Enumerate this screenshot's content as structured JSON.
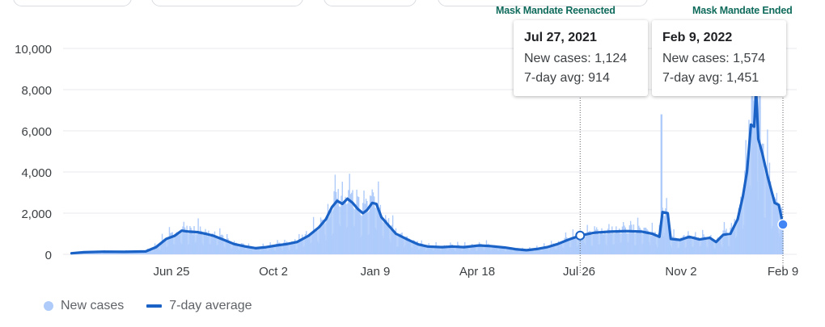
{
  "chart_data": {
    "type": "bar",
    "y_ticks": [
      "10,000",
      "8,000",
      "6,000",
      "4,000",
      "2,000",
      "0"
    ],
    "y_tick_values": [
      10000,
      8000,
      6000,
      4000,
      2000,
      0
    ],
    "ylim": [
      0,
      10000
    ],
    "x_ticks": [
      {
        "label": "Jun 25",
        "date": "2020-06-25"
      },
      {
        "label": "Oct 2",
        "date": "2020-10-02"
      },
      {
        "label": "Jan 9",
        "date": "2021-01-09"
      },
      {
        "label": "Apr 18",
        "date": "2021-04-18"
      },
      {
        "label": "Jul 26",
        "date": "2021-07-26"
      },
      {
        "label": "Nov 2",
        "date": "2021-11-02"
      },
      {
        "label": "Feb 9",
        "date": "2022-02-09"
      }
    ],
    "xlim": [
      "2020-03-20",
      "2022-02-10"
    ],
    "series": [
      {
        "name": "New cases",
        "kind": "bars",
        "color": "#aecbfa"
      },
      {
        "name": "7-day average",
        "kind": "line",
        "color": "#1a62c6"
      }
    ],
    "avg_points": [
      [
        "2020-03-20",
        50
      ],
      [
        "2020-04-01",
        100
      ],
      [
        "2020-04-20",
        130
      ],
      [
        "2020-05-10",
        120
      ],
      [
        "2020-05-31",
        140
      ],
      [
        "2020-06-10",
        350
      ],
      [
        "2020-06-20",
        750
      ],
      [
        "2020-06-28",
        900
      ],
      [
        "2020-07-05",
        1150
      ],
      [
        "2020-07-12",
        1100
      ],
      [
        "2020-07-20",
        1080
      ],
      [
        "2020-07-28",
        1000
      ],
      [
        "2020-08-05",
        900
      ],
      [
        "2020-08-15",
        700
      ],
      [
        "2020-08-25",
        500
      ],
      [
        "2020-09-05",
        380
      ],
      [
        "2020-09-15",
        300
      ],
      [
        "2020-09-25",
        350
      ],
      [
        "2020-10-05",
        430
      ],
      [
        "2020-10-15",
        500
      ],
      [
        "2020-10-25",
        600
      ],
      [
        "2020-11-05",
        900
      ],
      [
        "2020-11-15",
        1300
      ],
      [
        "2020-11-22",
        1700
      ],
      [
        "2020-11-28",
        2300
      ],
      [
        "2020-12-03",
        2600
      ],
      [
        "2020-12-08",
        2450
      ],
      [
        "2020-12-13",
        2700
      ],
      [
        "2020-12-18",
        2500
      ],
      [
        "2020-12-23",
        2200
      ],
      [
        "2020-12-28",
        2000
      ],
      [
        "2021-01-01",
        2150
      ],
      [
        "2021-01-06",
        2500
      ],
      [
        "2021-01-10",
        2450
      ],
      [
        "2021-01-15",
        1800
      ],
      [
        "2021-01-22",
        1400
      ],
      [
        "2021-01-29",
        1000
      ],
      [
        "2021-02-10",
        700
      ],
      [
        "2021-02-20",
        480
      ],
      [
        "2021-03-01",
        380
      ],
      [
        "2021-03-15",
        350
      ],
      [
        "2021-03-25",
        380
      ],
      [
        "2021-04-05",
        350
      ],
      [
        "2021-04-20",
        430
      ],
      [
        "2021-05-01",
        400
      ],
      [
        "2021-05-15",
        330
      ],
      [
        "2021-05-25",
        250
      ],
      [
        "2021-06-05",
        200
      ],
      [
        "2021-06-15",
        260
      ],
      [
        "2021-06-25",
        350
      ],
      [
        "2021-07-05",
        500
      ],
      [
        "2021-07-15",
        700
      ],
      [
        "2021-07-27",
        914
      ],
      [
        "2021-08-10",
        1050
      ],
      [
        "2021-08-25",
        1100
      ],
      [
        "2021-09-10",
        1130
      ],
      [
        "2021-09-25",
        1100
      ],
      [
        "2021-10-05",
        1000
      ],
      [
        "2021-10-12",
        850
      ],
      [
        "2021-10-15",
        2050
      ],
      [
        "2021-10-20",
        2000
      ],
      [
        "2021-10-23",
        750
      ],
      [
        "2021-11-01",
        700
      ],
      [
        "2021-11-10",
        850
      ],
      [
        "2021-11-20",
        720
      ],
      [
        "2021-11-30",
        800
      ],
      [
        "2021-12-06",
        600
      ],
      [
        "2021-12-13",
        950
      ],
      [
        "2021-12-20",
        1000
      ],
      [
        "2021-12-27",
        1700
      ],
      [
        "2022-01-01",
        2800
      ],
      [
        "2022-01-05",
        4000
      ],
      [
        "2022-01-09",
        6300
      ],
      [
        "2022-01-12",
        6200
      ],
      [
        "2022-01-14",
        7950
      ],
      [
        "2022-01-16",
        5600
      ],
      [
        "2022-01-20",
        4900
      ],
      [
        "2022-01-25",
        3800
      ],
      [
        "2022-02-01",
        2500
      ],
      [
        "2022-02-05",
        2400
      ],
      [
        "2022-02-09",
        1451
      ]
    ],
    "highlight_points": [
      {
        "date": "2021-07-27",
        "value": 914,
        "kind": "hollow"
      },
      {
        "date": "2022-02-09",
        "value": 1451,
        "kind": "filled"
      }
    ],
    "spikes": [
      {
        "date": "2021-10-14",
        "value": 6800
      },
      {
        "date": "2022-01-10",
        "value": 8100
      },
      {
        "date": "2022-01-14",
        "value": 9800
      },
      {
        "date": "2022-01-17",
        "value": 8300
      }
    ],
    "tooltips": [
      {
        "date": "Jul 27, 2021",
        "new_cases_label": "New cases: 1,124",
        "avg_label": "7-day avg: 914",
        "anchor_date": "2021-07-27"
      },
      {
        "date": "Feb 9, 2022",
        "new_cases_label": "New cases: 1,574",
        "avg_label": "7-day avg: 1,451",
        "anchor_date": "2022-02-09"
      }
    ],
    "annotations": [
      {
        "text": "Mask Mandate Reenacted"
      },
      {
        "text": "Mask Mandate Ended"
      }
    ],
    "legend": [
      {
        "label": "New cases"
      },
      {
        "label": "7-day average"
      }
    ],
    "grid": true,
    "legend_position": "bottom-left"
  }
}
